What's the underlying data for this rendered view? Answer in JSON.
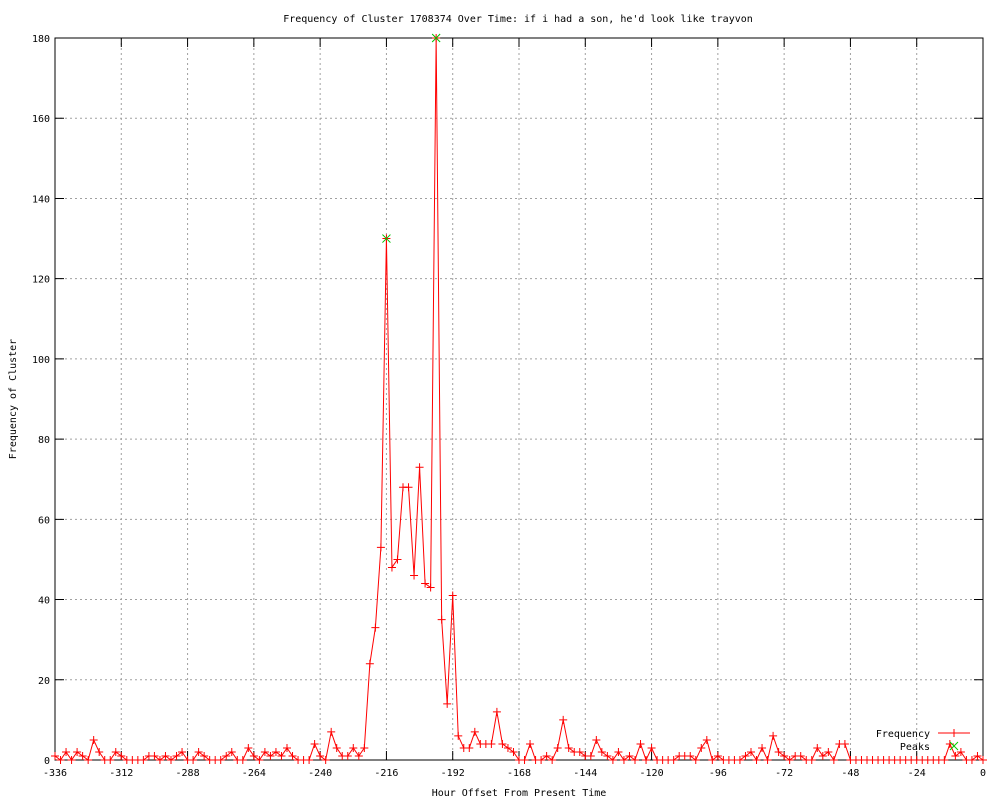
{
  "chart_data": {
    "type": "line",
    "title": "Frequency of Cluster 1708374 Over Time: if i had a son, he'd look like trayvon",
    "xlabel": "Hour Offset From Present Time",
    "ylabel": "Frequency of Cluster",
    "xlim": [
      -336,
      0
    ],
    "ylim": [
      0,
      180
    ],
    "xticks": [
      -336,
      -312,
      -288,
      -264,
      -240,
      -216,
      -192,
      -168,
      -144,
      -120,
      -96,
      -72,
      -48,
      -24,
      0
    ],
    "yticks": [
      0,
      20,
      40,
      60,
      80,
      100,
      120,
      140,
      160,
      180
    ],
    "grid": true,
    "legend_position": "bottom-right",
    "series": [
      {
        "name": "Frequency",
        "color": "#ff0000",
        "marker": "plus",
        "x_start": -336,
        "x_step": 2,
        "values": [
          1,
          0,
          2,
          0,
          2,
          1,
          0,
          5,
          2,
          0,
          0,
          2,
          1,
          0,
          0,
          0,
          0,
          1,
          1,
          0,
          1,
          0,
          1,
          2,
          0,
          0,
          2,
          1,
          0,
          0,
          0,
          1,
          2,
          0,
          0,
          3,
          1,
          0,
          2,
          1,
          2,
          1,
          3,
          1,
          0,
          0,
          0,
          4,
          1,
          0,
          7,
          3,
          1,
          1,
          3,
          1,
          3,
          24,
          33,
          53,
          130,
          48,
          50,
          68,
          68,
          46,
          73,
          44,
          43,
          180,
          35,
          14,
          41,
          6,
          3,
          3,
          7,
          4,
          4,
          4,
          12,
          4,
          3,
          2,
          0,
          0,
          4,
          0,
          0,
          1,
          0,
          3,
          10,
          3,
          2,
          2,
          1,
          1,
          5,
          2,
          1,
          0,
          2,
          0,
          1,
          0,
          4,
          0,
          3,
          0,
          0,
          0,
          0,
          1,
          1,
          1,
          0,
          3,
          5,
          0,
          1,
          0,
          0,
          0,
          0,
          1,
          2,
          0,
          3,
          0,
          6,
          2,
          1,
          0,
          1,
          1,
          0,
          0,
          3,
          1,
          2,
          0,
          4,
          4,
          0,
          0,
          0,
          0,
          0,
          0,
          0,
          0,
          0,
          0,
          0,
          0,
          0,
          0,
          0,
          0,
          0,
          0,
          4,
          1,
          2,
          0,
          0,
          1,
          0
        ]
      },
      {
        "name": "Peaks",
        "color": "#00c000",
        "marker": "x",
        "points": [
          [
            -216,
            130
          ],
          [
            -198,
            180
          ]
        ]
      }
    ]
  }
}
